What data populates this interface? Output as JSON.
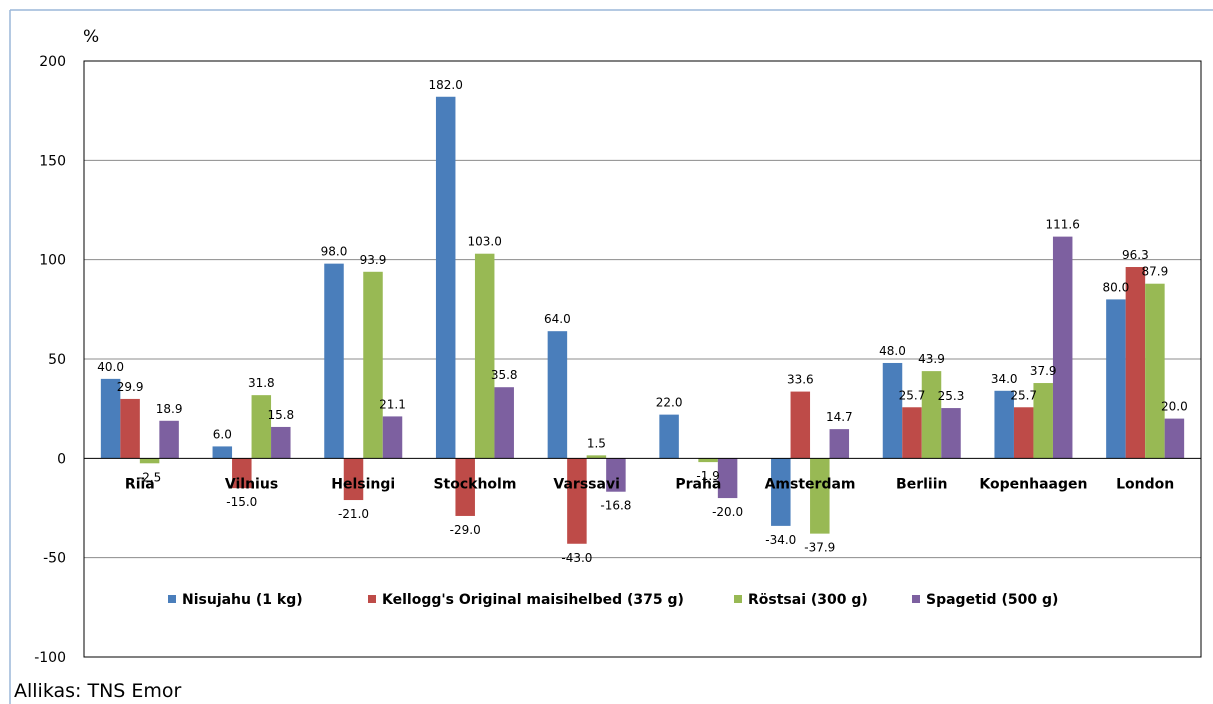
{
  "chart_data": {
    "type": "bar",
    "ylabel": "%",
    "ylim": [
      -100,
      200
    ],
    "yticks": [
      200,
      150,
      100,
      50,
      0,
      -50,
      -100
    ],
    "grid": true,
    "legend_position": "bottom",
    "categories": [
      "Riia",
      "Vilnius",
      "Helsingi",
      "Stockholm",
      "Varssavi",
      "Praha",
      "Amsterdam",
      "Berliin",
      "Kopenhaagen",
      "London"
    ],
    "series": [
      {
        "name": "Nisujahu (1 kg)",
        "color": "#4a7ebb",
        "values": [
          40.0,
          6.0,
          98.0,
          182.0,
          64.0,
          22.0,
          -34.0,
          48.0,
          34.0,
          80.0
        ],
        "labels": [
          "40.0",
          "6.0",
          "98.0",
          "182.0",
          "64.0",
          "22.0",
          "-34.0",
          "48.0",
          "34.0",
          "80.0"
        ]
      },
      {
        "name": "Kellogg's Original maisihelbed (375 g)",
        "color": "#be4b48",
        "values": [
          29.9,
          -15.0,
          -21.0,
          -29.0,
          -43.0,
          0,
          33.6,
          25.7,
          25.7,
          96.3
        ],
        "labels": [
          "29.9",
          "-15.0",
          "-21.0",
          "-29.0",
          "-43.0",
          "",
          "33.6",
          "25.7",
          "25.7",
          "96.3"
        ]
      },
      {
        "name": "Röstsai (300 g)",
        "color": "#98b954",
        "values": [
          -2.5,
          31.8,
          93.9,
          103.0,
          1.5,
          -1.9,
          -37.9,
          43.9,
          37.9,
          87.9
        ],
        "labels": [
          "-2.5",
          "31.8",
          "93.9",
          "103.0",
          "1.5",
          "-1.9",
          "-37.9",
          "43.9",
          "37.9",
          "87.9"
        ]
      },
      {
        "name": "Spagetid (500 g)",
        "color": "#7d60a0",
        "values": [
          18.9,
          15.8,
          21.1,
          35.8,
          -16.8,
          -20.0,
          14.7,
          25.3,
          111.6,
          20.0
        ],
        "labels": [
          "18.9",
          "15.8",
          "21.1",
          "35.8",
          "-16.8",
          "-20.0",
          "14.7",
          "25.3",
          "111.6",
          "20.0"
        ]
      }
    ]
  },
  "source": "Allikas: TNS Emor"
}
